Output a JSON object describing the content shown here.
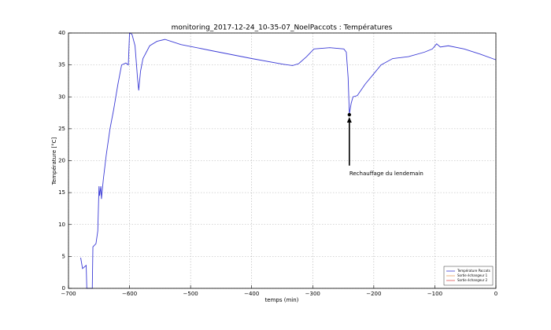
{
  "chart_data": {
    "type": "line",
    "title": "monitoring_2017-12-24_10-35-07_NoelPaccots : Températures",
    "x_label": "temps (min)",
    "y_label": "Température [°C]",
    "x": [
      -680,
      -677,
      -671,
      -670,
      -661,
      -660,
      -655,
      -652,
      -650,
      -649,
      -647,
      -646,
      -643,
      -638,
      -632,
      -626,
      -619,
      -613,
      -606,
      -602,
      -600,
      -596,
      -591,
      -587,
      -585,
      -582,
      -578,
      -567,
      -555,
      -542,
      -516,
      -464,
      -400,
      -348,
      -333,
      -323,
      -310,
      -298,
      -272,
      -249,
      -245,
      -242,
      -240,
      -237,
      -234,
      -227,
      -214,
      -201,
      -188,
      -169,
      -143,
      -117,
      -104,
      -97,
      -91,
      -78,
      -52,
      -26,
      0
    ],
    "series": [
      {
        "name": "Température Paccots",
        "color": "#3b3bd6",
        "values": [
          4.8,
          3.1,
          3.6,
          0,
          0,
          6.5,
          7,
          9,
          16,
          14.5,
          16,
          14,
          17,
          21,
          25,
          28,
          32,
          35,
          35.3,
          35,
          40,
          39.8,
          38,
          33,
          31,
          34,
          36,
          38,
          38.7,
          39,
          38.2,
          37.2,
          36,
          35.1,
          34.9,
          35.2,
          36.3,
          37.5,
          37.7,
          37.5,
          37,
          33,
          27.3,
          29,
          30,
          30.2,
          32,
          33.5,
          35,
          36,
          36.3,
          37,
          37.5,
          38.3,
          37.8,
          38,
          37.5,
          36.7,
          35.8
        ]
      },
      {
        "name": "Sortie échangeur 1",
        "color": "#e8a060",
        "values": [
          null,
          null,
          null,
          null,
          null,
          null,
          null,
          null,
          null,
          null,
          null,
          null,
          null,
          null,
          null,
          null,
          null,
          null,
          null,
          null,
          null,
          null,
          null,
          null,
          null,
          null,
          null,
          null,
          null,
          null,
          null,
          null,
          null,
          null,
          null,
          null,
          null,
          null,
          null,
          null,
          null,
          null,
          null,
          null,
          null,
          null,
          null,
          null,
          null,
          null,
          null,
          null,
          null,
          null,
          null,
          null,
          null,
          null,
          null
        ]
      },
      {
        "name": "Sortie échangeur 2",
        "color": "#e05050",
        "values": [
          null,
          null,
          null,
          null,
          null,
          null,
          null,
          null,
          null,
          null,
          null,
          null,
          null,
          null,
          null,
          null,
          null,
          null,
          null,
          null,
          null,
          null,
          null,
          null,
          null,
          null,
          null,
          null,
          null,
          null,
          null,
          null,
          null,
          null,
          null,
          null,
          null,
          null,
          null,
          null,
          null,
          null,
          null,
          null,
          null,
          null,
          null,
          null,
          null,
          null,
          null,
          null,
          null,
          null,
          null,
          null,
          null,
          null,
          null
        ]
      }
    ],
    "xlim": [
      -700,
      0
    ],
    "ylim": [
      0,
      40
    ],
    "xticks": [
      {
        "value": -700,
        "label": "−700"
      },
      {
        "value": -600,
        "label": "−600"
      },
      {
        "value": -500,
        "label": "−500"
      },
      {
        "value": -400,
        "label": "−400"
      },
      {
        "value": -300,
        "label": "−300"
      },
      {
        "value": -200,
        "label": "−200"
      },
      {
        "value": -100,
        "label": "−100"
      },
      0
    ],
    "yticks": [
      0,
      5,
      10,
      15,
      20,
      25,
      30,
      35,
      40
    ],
    "grid": true,
    "legend": "lower right",
    "annotation": {
      "text": "Rechauffage du lendemain",
      "x": -240,
      "y": 27.2,
      "text_x": -240,
      "text_y": 18
    }
  }
}
